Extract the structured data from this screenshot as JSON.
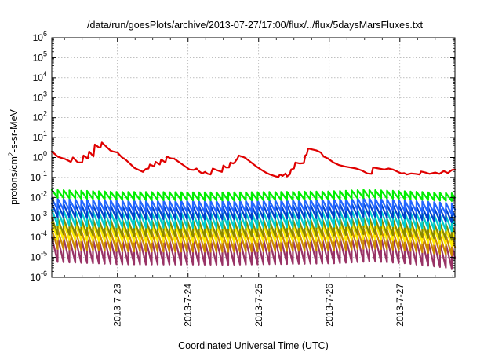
{
  "chart_data": {
    "type": "line",
    "title": "/data/run/goesPlots/archive/2013-07-27/17:00/flux/../flux/5daysMarsFluxes.txt",
    "xlabel": "Coordinated Universal Time (UTC)",
    "ylabel_parts": [
      "protons/cm",
      "2",
      "-s-sr-MeV"
    ],
    "yscale": "log",
    "ylim_exp": [
      -6,
      6
    ],
    "y_ticks": [
      {
        "base": "10",
        "exp": "-6"
      },
      {
        "base": "10",
        "exp": "-5"
      },
      {
        "base": "10",
        "exp": "-4"
      },
      {
        "base": "10",
        "exp": "-3"
      },
      {
        "base": "10",
        "exp": "-2"
      },
      {
        "base": "10",
        "exp": "-1"
      },
      {
        "base": "10",
        "exp": "0"
      },
      {
        "base": "10",
        "exp": "1"
      },
      {
        "base": "10",
        "exp": "2"
      },
      {
        "base": "10",
        "exp": "3"
      },
      {
        "base": "10",
        "exp": "4"
      },
      {
        "base": "10",
        "exp": "5"
      },
      {
        "base": "10",
        "exp": "6"
      }
    ],
    "xlim": [
      22.07,
      27.78
    ],
    "x_ticks": [
      {
        "value": 23,
        "label": "2013-7-23"
      },
      {
        "value": 24,
        "label": "2013-7-24"
      },
      {
        "value": 25,
        "label": "2013-7-25"
      },
      {
        "value": 26,
        "label": "2013-7-26"
      },
      {
        "value": 27,
        "label": "2013-7-27"
      }
    ],
    "grid": true,
    "series": [
      {
        "color": "#e00000",
        "points": [
          [
            22.07,
            0.3
          ],
          [
            22.16,
            0.03
          ],
          [
            22.26,
            -0.08
          ],
          [
            22.34,
            -0.22
          ],
          [
            22.37,
            0.0
          ],
          [
            22.44,
            -0.25
          ],
          [
            22.5,
            -0.25
          ],
          [
            22.52,
            0.1
          ],
          [
            22.58,
            -0.05
          ],
          [
            22.6,
            0.3
          ],
          [
            22.66,
            0.05
          ],
          [
            22.68,
            0.65
          ],
          [
            22.74,
            0.5
          ],
          [
            22.76,
            0.5
          ],
          [
            22.78,
            0.75
          ],
          [
            22.84,
            0.55
          ],
          [
            22.9,
            0.35
          ],
          [
            22.94,
            0.3
          ],
          [
            23.0,
            0.25
          ],
          [
            23.06,
            0.02
          ],
          [
            23.12,
            -0.12
          ],
          [
            23.18,
            -0.32
          ],
          [
            23.24,
            -0.52
          ],
          [
            23.3,
            -0.62
          ],
          [
            23.36,
            -0.72
          ],
          [
            23.4,
            -0.58
          ],
          [
            23.44,
            -0.55
          ],
          [
            23.46,
            -0.35
          ],
          [
            23.52,
            -0.45
          ],
          [
            23.54,
            -0.22
          ],
          [
            23.6,
            -0.35
          ],
          [
            23.62,
            -0.1
          ],
          [
            23.68,
            -0.25
          ],
          [
            23.7,
            0.05
          ],
          [
            23.76,
            -0.05
          ],
          [
            23.8,
            -0.05
          ],
          [
            23.84,
            -0.15
          ],
          [
            23.9,
            -0.3
          ],
          [
            23.96,
            -0.45
          ],
          [
            24.02,
            -0.6
          ],
          [
            24.08,
            -0.62
          ],
          [
            24.12,
            -0.55
          ],
          [
            24.16,
            -0.7
          ],
          [
            24.2,
            -0.8
          ],
          [
            24.24,
            -0.72
          ],
          [
            24.28,
            -0.82
          ],
          [
            24.32,
            -0.85
          ],
          [
            24.35,
            -0.55
          ],
          [
            24.42,
            -0.65
          ],
          [
            24.48,
            -0.72
          ],
          [
            24.5,
            -0.4
          ],
          [
            24.54,
            -0.5
          ],
          [
            24.58,
            -0.5
          ],
          [
            24.6,
            -0.25
          ],
          [
            24.64,
            -0.3
          ],
          [
            24.66,
            -0.25
          ],
          [
            24.7,
            -0.05
          ],
          [
            24.72,
            0.1
          ],
          [
            24.76,
            0.05
          ],
          [
            24.8,
            0.0
          ],
          [
            24.86,
            -0.15
          ],
          [
            24.92,
            -0.32
          ],
          [
            24.98,
            -0.48
          ],
          [
            25.04,
            -0.62
          ],
          [
            25.1,
            -0.75
          ],
          [
            25.16,
            -0.85
          ],
          [
            25.22,
            -0.92
          ],
          [
            25.28,
            -0.98
          ],
          [
            25.3,
            -0.85
          ],
          [
            25.34,
            -0.92
          ],
          [
            25.38,
            -0.8
          ],
          [
            25.4,
            -0.95
          ],
          [
            25.44,
            -0.85
          ],
          [
            25.46,
            -0.6
          ],
          [
            25.5,
            -0.55
          ],
          [
            25.52,
            -0.25
          ],
          [
            25.58,
            -0.3
          ],
          [
            25.64,
            -0.28
          ],
          [
            25.66,
            0.1
          ],
          [
            25.68,
            0.15
          ],
          [
            25.7,
            0.45
          ],
          [
            25.76,
            0.4
          ],
          [
            25.82,
            0.35
          ],
          [
            25.88,
            0.25
          ],
          [
            25.92,
            0.05
          ],
          [
            25.98,
            -0.05
          ],
          [
            26.06,
            -0.25
          ],
          [
            26.14,
            -0.38
          ],
          [
            26.22,
            -0.45
          ],
          [
            26.3,
            -0.5
          ],
          [
            26.38,
            -0.55
          ],
          [
            26.46,
            -0.65
          ],
          [
            26.54,
            -0.8
          ],
          [
            26.6,
            -0.82
          ],
          [
            26.62,
            -0.5
          ],
          [
            26.7,
            -0.55
          ],
          [
            26.78,
            -0.6
          ],
          [
            26.84,
            -0.55
          ],
          [
            26.9,
            -0.6
          ],
          [
            26.96,
            -0.7
          ],
          [
            27.02,
            -0.8
          ],
          [
            27.06,
            -0.78
          ],
          [
            27.1,
            -0.85
          ],
          [
            27.16,
            -0.8
          ],
          [
            27.22,
            -0.82
          ],
          [
            27.28,
            -0.85
          ],
          [
            27.3,
            -0.7
          ],
          [
            27.36,
            -0.75
          ],
          [
            27.42,
            -0.82
          ],
          [
            27.5,
            -0.75
          ],
          [
            27.56,
            -0.82
          ],
          [
            27.62,
            -0.68
          ],
          [
            27.68,
            -0.78
          ],
          [
            27.74,
            -0.62
          ],
          [
            27.78,
            -0.6
          ]
        ]
      }
    ],
    "bands": [
      {
        "color": "#00ee00",
        "top": -1.62,
        "bottom": -2.02,
        "peaks": [
          [
            22.07,
            -1.62
          ],
          [
            23.0,
            -1.72
          ],
          [
            24.5,
            -1.75
          ],
          [
            26.0,
            -1.7
          ],
          [
            26.5,
            -1.62
          ],
          [
            27.0,
            -1.68
          ],
          [
            27.78,
            -1.8
          ]
        ]
      },
      {
        "color": "#2266ff",
        "top": -2.05,
        "bottom": -2.62,
        "peaks": [
          [
            22.07,
            -2.05
          ],
          [
            23.0,
            -2.15
          ],
          [
            24.5,
            -2.18
          ],
          [
            26.0,
            -2.1
          ],
          [
            26.5,
            -2.02
          ],
          [
            27.0,
            -2.12
          ],
          [
            27.78,
            -2.3
          ]
        ]
      },
      {
        "color": "#0044cc",
        "top": -2.3,
        "bottom": -2.98,
        "peaks": [
          [
            22.07,
            -2.3
          ],
          [
            23.0,
            -2.4
          ],
          [
            24.5,
            -2.42
          ],
          [
            26.0,
            -2.35
          ],
          [
            26.5,
            -2.28
          ],
          [
            27.0,
            -2.38
          ],
          [
            27.78,
            -2.6
          ]
        ]
      },
      {
        "color": "#00cccc",
        "top": -2.6,
        "bottom": -3.38,
        "peaks": [
          [
            22.07,
            -2.62
          ],
          [
            23.0,
            -2.72
          ],
          [
            24.5,
            -2.75
          ],
          [
            26.0,
            -2.68
          ],
          [
            26.5,
            -2.6
          ],
          [
            27.0,
            -2.7
          ],
          [
            27.78,
            -2.95
          ]
        ]
      },
      {
        "color": "#888800",
        "top": -3.0,
        "bottom": -3.82,
        "peaks": [
          [
            22.07,
            -3.02
          ],
          [
            23.0,
            -3.12
          ],
          [
            24.5,
            -3.15
          ],
          [
            26.0,
            -3.08
          ],
          [
            26.5,
            -3.0
          ],
          [
            27.0,
            -3.1
          ],
          [
            27.78,
            -3.35
          ]
        ]
      },
      {
        "color": "#ffee00",
        "top": -3.25,
        "bottom": -4.12,
        "peaks": [
          [
            22.07,
            -3.25
          ],
          [
            23.0,
            -3.35
          ],
          [
            24.5,
            -3.38
          ],
          [
            26.0,
            -3.3
          ],
          [
            26.5,
            -3.22
          ],
          [
            27.0,
            -3.32
          ],
          [
            27.78,
            -3.6
          ]
        ]
      },
      {
        "color": "#cc8800",
        "top": -3.55,
        "bottom": -4.55,
        "peaks": [
          [
            22.07,
            -3.58
          ],
          [
            23.0,
            -3.7
          ],
          [
            24.5,
            -3.72
          ],
          [
            26.0,
            -3.65
          ],
          [
            26.5,
            -3.55
          ],
          [
            27.0,
            -3.65
          ],
          [
            27.78,
            -3.95
          ]
        ]
      },
      {
        "color": "#993366",
        "top": -3.95,
        "bottom": -5.2,
        "peaks": [
          [
            22.07,
            -3.98
          ],
          [
            23.0,
            -4.1
          ],
          [
            24.5,
            -4.12
          ],
          [
            26.0,
            -4.05
          ],
          [
            26.5,
            -3.95
          ],
          [
            27.0,
            -4.05
          ],
          [
            27.78,
            -4.35
          ]
        ]
      }
    ],
    "band_period_days": 0.0833
  }
}
